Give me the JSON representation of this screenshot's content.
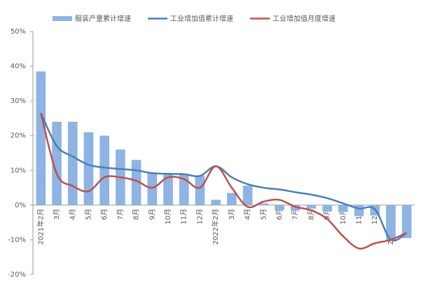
{
  "chart_data": {
    "type": "bar-line",
    "categories": [
      "2021年2月",
      "3月",
      "4月",
      "5月",
      "6月",
      "7月",
      "8月",
      "9月",
      "10月",
      "11月",
      "12月",
      "2022年2月",
      "3月",
      "4月",
      "5月",
      "6月",
      "7月",
      "8月",
      "9月",
      "10月",
      "11月",
      "12月",
      "2023年2月",
      "3月"
    ],
    "series": [
      {
        "name": "服装产量累计增速",
        "type": "bar",
        "color": "#8db4e2",
        "values": [
          38.5,
          24,
          24,
          21,
          20,
          16,
          13,
          9.3,
          9,
          8.8,
          8.5,
          1.5,
          3.5,
          5.6,
          0.5,
          -1.5,
          -1.5,
          -1,
          -1.8,
          -2,
          -3.2,
          -3,
          -10,
          -9.5
        ]
      },
      {
        "name": "工业增加值累计增速",
        "type": "line",
        "color": "#4a7ebb",
        "values": [
          26.5,
          17,
          14,
          11.6,
          10.8,
          10.4,
          10,
          9.2,
          9,
          8.9,
          8.4,
          11.2,
          8,
          6,
          5,
          4.5,
          3.7,
          3,
          2,
          0.5,
          -1,
          -1.2,
          -10,
          -8
        ]
      },
      {
        "name": "工业增加值月度增速",
        "type": "line",
        "color": "#c0504d",
        "values": [
          26.5,
          9,
          5.5,
          4,
          8,
          8,
          7,
          5,
          8,
          7.5,
          5,
          11.2,
          5,
          -0.5,
          1,
          1.5,
          -0.5,
          -1.5,
          -4,
          -9,
          -12.5,
          -11,
          -10,
          -8
        ]
      }
    ],
    "ylim": [
      -20,
      50
    ],
    "yticks": [
      {
        "value": -20,
        "label": "-20%"
      },
      {
        "value": -10,
        "label": "-10%"
      },
      {
        "value": 0,
        "label": "0%"
      },
      {
        "value": 10,
        "label": "10%"
      },
      {
        "value": 20,
        "label": "20%"
      },
      {
        "value": 30,
        "label": "30%"
      },
      {
        "value": 40,
        "label": "40%"
      },
      {
        "value": 50,
        "label": "50%"
      }
    ],
    "grid": false
  }
}
